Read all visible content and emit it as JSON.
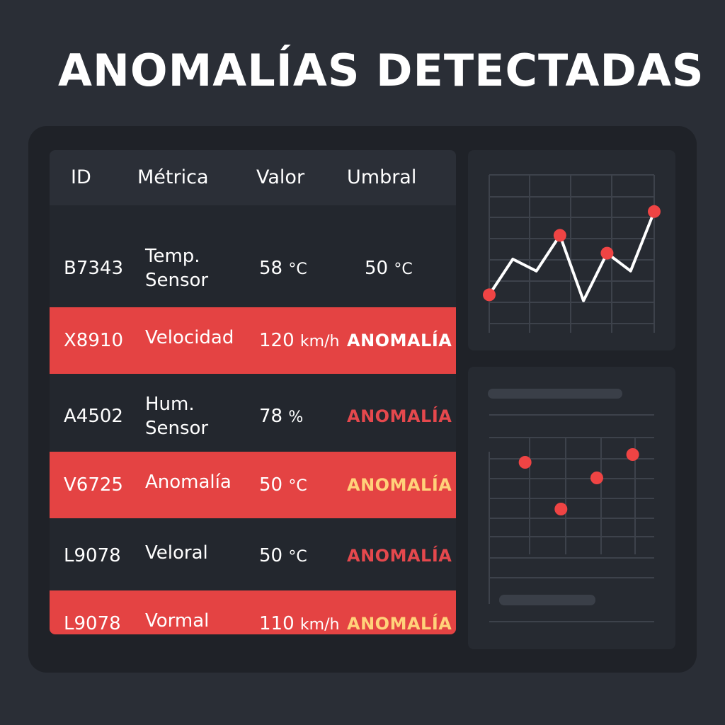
{
  "title": "ANOMALÍAS DETECTADAS",
  "colors": {
    "background": "#2a2e36",
    "panel": "#1f2228",
    "anomaly_row": "#e44343",
    "status_red": "#e5484d",
    "status_yellow": "#ffd27a",
    "point": "#ef4444",
    "line": "#ffffff"
  },
  "table": {
    "headers": [
      "ID",
      "Métrica",
      "Valor",
      "Umbral"
    ],
    "rows": [
      {
        "id": "B7343",
        "metric_line1": "Temp.",
        "metric_line2": "Sensor",
        "value": "58",
        "value_unit": "°C",
        "threshold": "50",
        "threshold_unit": "°C",
        "status": "",
        "highlighted": false
      },
      {
        "id": "X8910",
        "metric_line1": "Velocidad",
        "metric_line2": "",
        "value": "120",
        "value_unit": "km/h",
        "threshold": "",
        "threshold_unit": "",
        "status": "ANOMALÍA",
        "highlighted": true
      },
      {
        "id": "A4502",
        "metric_line1": "Hum.",
        "metric_line2": "Sensor",
        "value": "78",
        "value_unit": "%",
        "threshold": "",
        "threshold_unit": "",
        "status": "ANOMALÍA",
        "highlighted": false
      },
      {
        "id": "V6725",
        "metric_line1": "Anomalía",
        "metric_line2": "",
        "value": "50",
        "value_unit": "°C",
        "threshold": "",
        "threshold_unit": "",
        "status": "ANOMALÍA",
        "highlighted": true
      },
      {
        "id": "L9078",
        "metric_line1": "Veloral",
        "metric_line2": "",
        "value": "50",
        "value_unit": "°C",
        "threshold": "",
        "threshold_unit": "",
        "status": "ANOMALÍA",
        "highlighted": false
      },
      {
        "id": "L9078",
        "metric_line1": "Vormal",
        "metric_line2": "",
        "value": "110",
        "value_unit": "km/h",
        "threshold": "",
        "threshold_unit": "",
        "status": "ANOMALÍA",
        "highlighted": true
      }
    ]
  },
  "chart_data": [
    {
      "type": "line",
      "x": [
        0,
        1,
        2,
        3,
        4,
        5,
        6,
        7
      ],
      "y": [
        2,
        5,
        4,
        7,
        1.5,
        5.5,
        4,
        9
      ],
      "marked_points": [
        0,
        3,
        5,
        7
      ],
      "xlim": [
        0,
        7
      ],
      "ylim": [
        0,
        10
      ],
      "grid": true
    },
    {
      "type": "scatter",
      "x": [
        1,
        2,
        3,
        4
      ],
      "y": [
        7.5,
        4.5,
        6.5,
        8
      ],
      "xlim": [
        0,
        4.6
      ],
      "ylim": [
        0,
        10
      ],
      "grid": true
    }
  ]
}
